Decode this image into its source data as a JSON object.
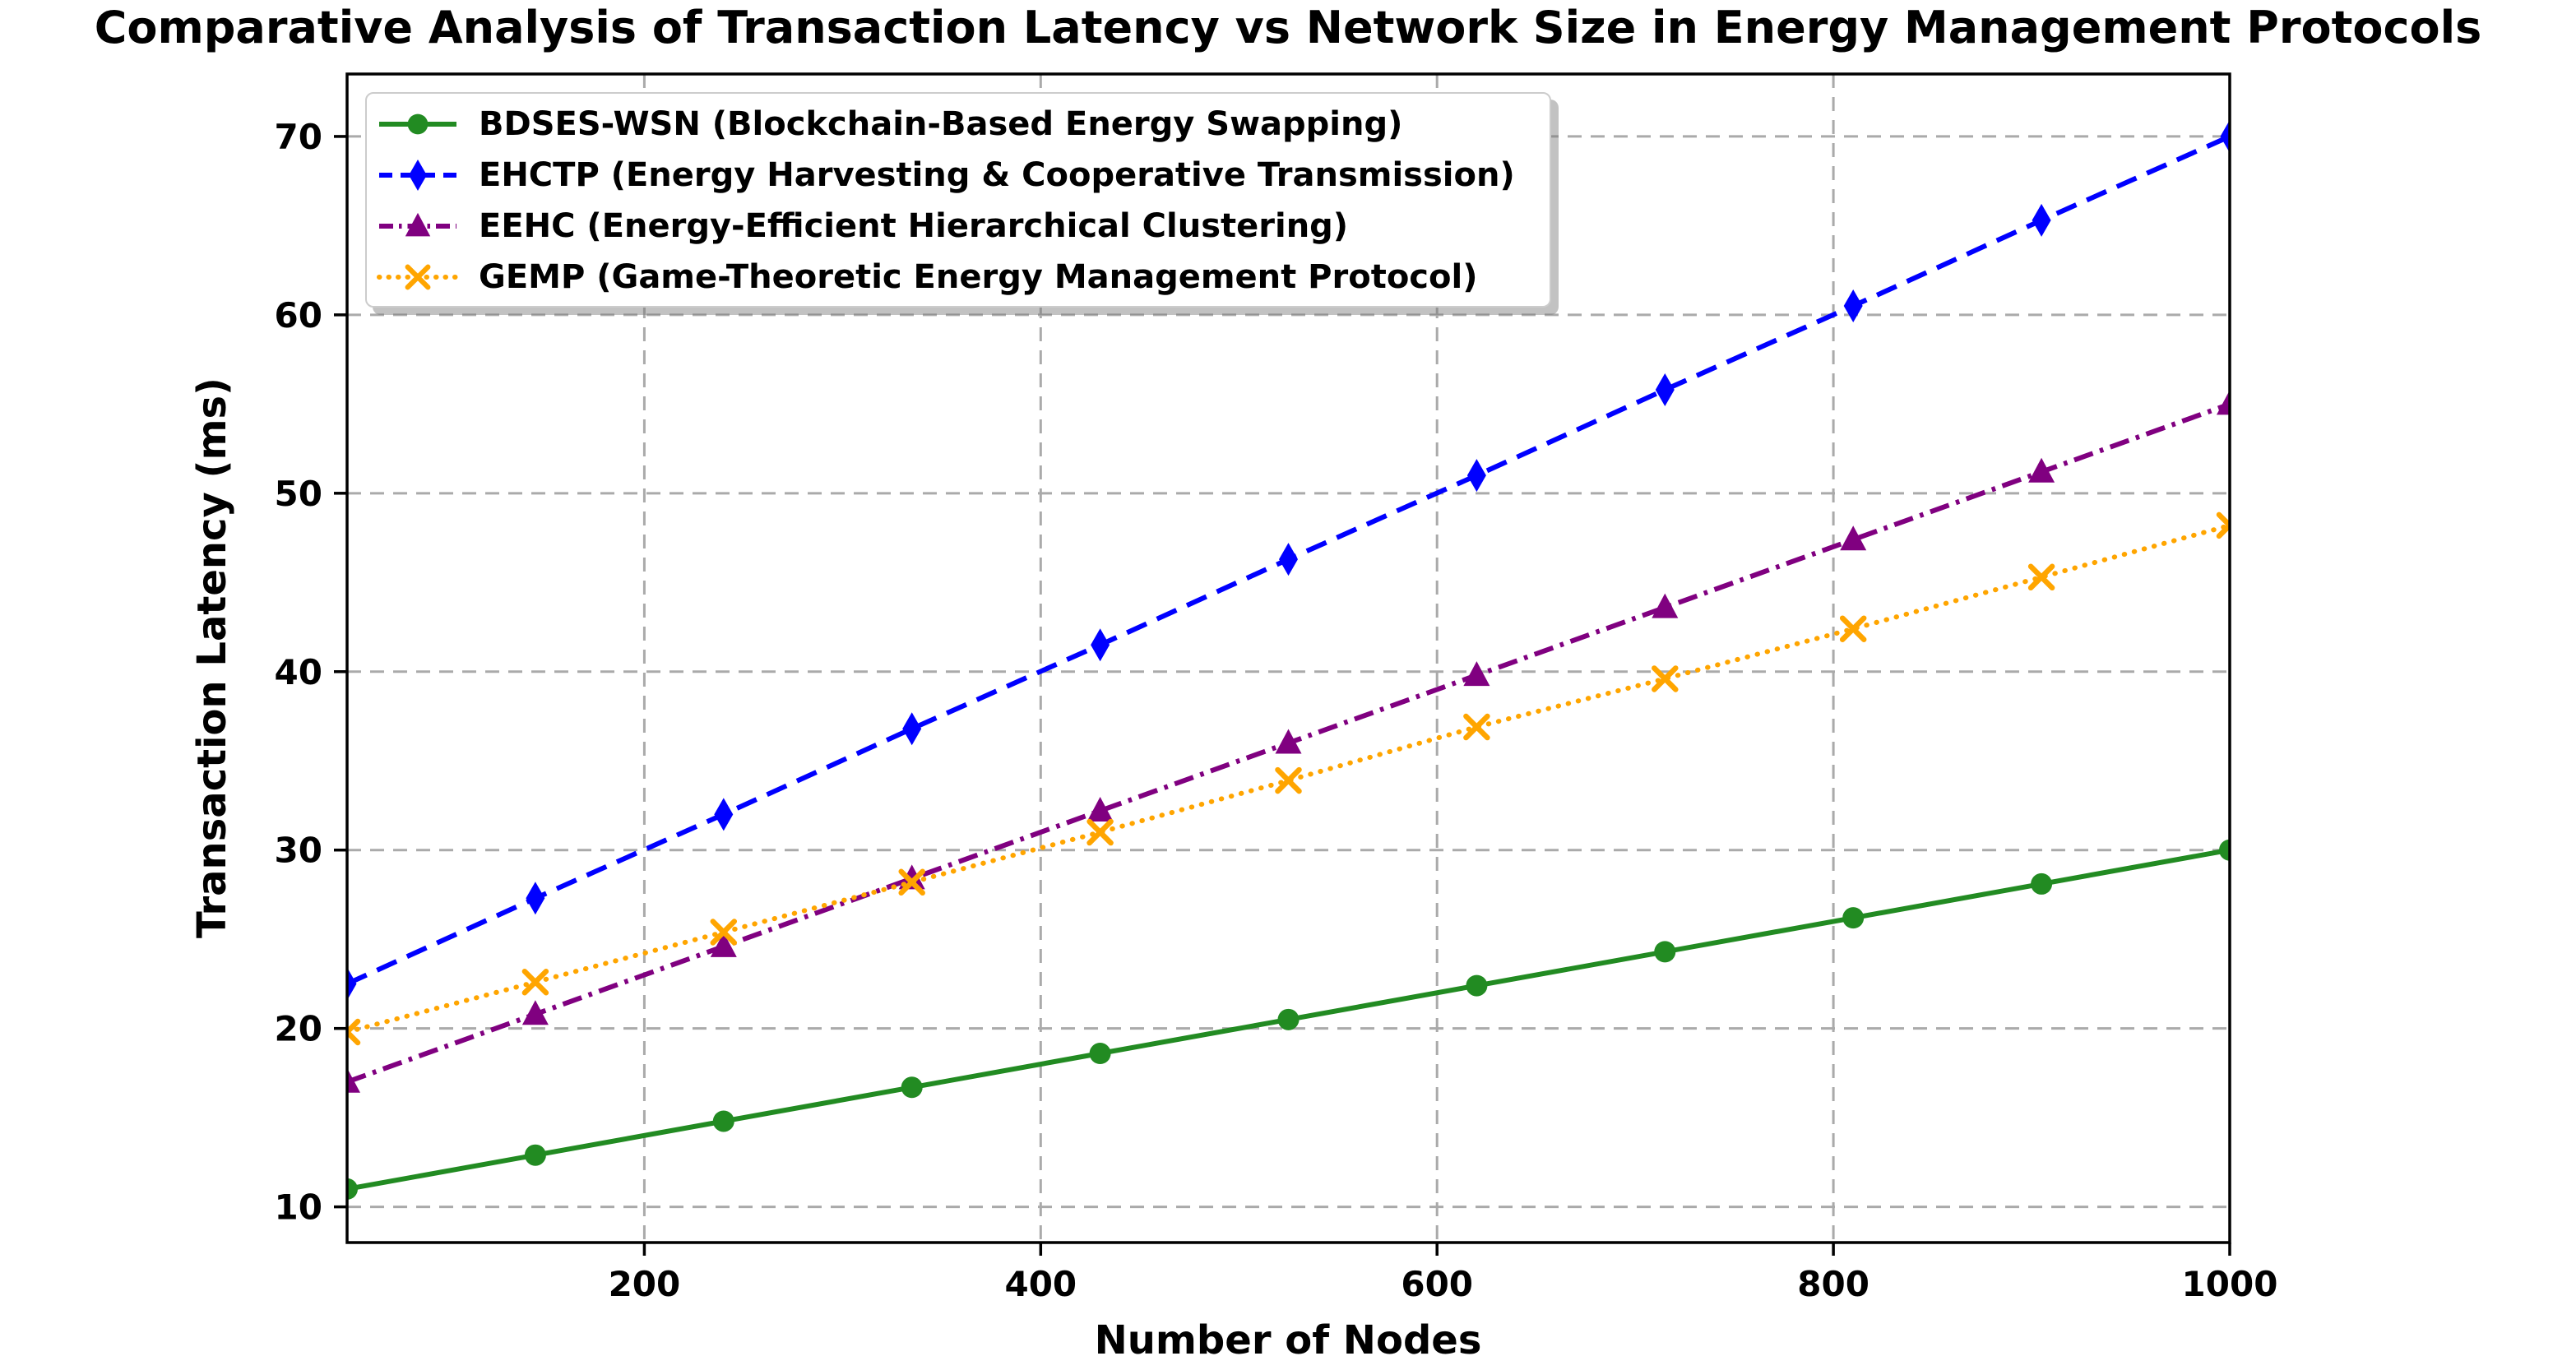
{
  "title": "Comparative Analysis of Transaction Latency vs Network Size in Energy Management Protocols",
  "axes": {
    "xlabel": "Number of Nodes",
    "ylabel": "Transaction Latency (ms)",
    "x_ticks": [
      200,
      400,
      600,
      800,
      1000
    ],
    "y_ticks": [
      10,
      20,
      30,
      40,
      50,
      60,
      70
    ],
    "xlim": [
      50,
      1000
    ],
    "ylim": [
      8,
      73.5
    ],
    "grid": "dashed",
    "grid_color": "#aaaaaa",
    "spine_color": "#000000",
    "background": "#ffffff"
  },
  "chart_data": {
    "type": "line",
    "title": "Comparative Analysis of Transaction Latency vs Network Size in Energy Management Protocols",
    "xlabel": "Number of Nodes",
    "ylabel": "Transaction Latency (ms)",
    "xlim": [
      50,
      1000
    ],
    "ylim": [
      8,
      73.5
    ],
    "grid": true,
    "legend_position": "upper left",
    "x": [
      50,
      145,
      240,
      335,
      430,
      525,
      620,
      715,
      810,
      905,
      1000
    ],
    "series": [
      {
        "label": "BDSES-WSN (Blockchain-Based Energy Swapping)",
        "color": "#228B22",
        "linestyle": "solid",
        "marker": "circle",
        "values": [
          11.0,
          12.9,
          14.8,
          16.7,
          18.6,
          20.5,
          22.4,
          24.3,
          26.2,
          28.1,
          30.0
        ]
      },
      {
        "label": "EHCTP (Energy Harvesting & Cooperative Transmission)",
        "color": "#0000FF",
        "linestyle": "dashed",
        "marker": "diamond",
        "values": [
          22.5,
          27.3,
          32.0,
          36.8,
          41.5,
          46.3,
          51.0,
          55.8,
          60.5,
          65.3,
          70.0
        ]
      },
      {
        "label": "EEHC (Energy-Efficient Hierarchical Clustering)",
        "color": "#800080",
        "linestyle": "dashdot",
        "marker": "triangle",
        "values": [
          17.0,
          20.8,
          24.6,
          28.4,
          32.2,
          36.0,
          39.8,
          43.6,
          47.4,
          51.2,
          55.0
        ]
      },
      {
        "label": "GEMP (Game-Theoretic Energy Management Protocol)",
        "color": "#FFA500",
        "linestyle": "dotted",
        "marker": "x",
        "values": [
          19.8,
          22.6,
          25.4,
          28.2,
          31.0,
          33.9,
          36.9,
          39.6,
          42.4,
          45.3,
          48.2
        ]
      }
    ]
  }
}
